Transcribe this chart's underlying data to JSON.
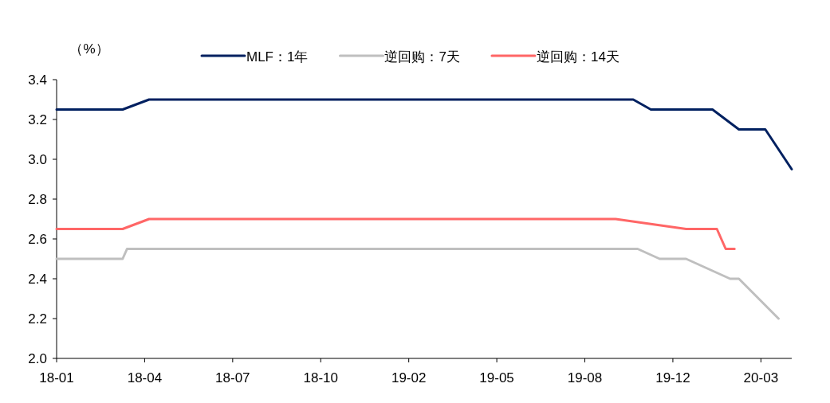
{
  "chart_data": {
    "type": "line",
    "ylabel": "（%）",
    "legend": "top",
    "grid": false,
    "line_style": "solid",
    "marker": "none",
    "categories": [
      "18-01",
      null,
      null,
      null,
      null,
      null,
      null,
      null,
      null,
      null,
      null,
      null,
      null,
      null,
      null,
      null,
      null,
      null,
      null,
      null,
      "18-04",
      null,
      null,
      null,
      null,
      null,
      null,
      null,
      null,
      null,
      null,
      null,
      null,
      null,
      null,
      null,
      null,
      null,
      null,
      null,
      "18-07",
      null,
      null,
      null,
      null,
      null,
      null,
      null,
      null,
      null,
      null,
      null,
      null,
      null,
      null,
      null,
      null,
      null,
      null,
      null,
      "18-10",
      null,
      null,
      null,
      null,
      null,
      null,
      null,
      null,
      null,
      null,
      null,
      null,
      null,
      null,
      null,
      null,
      null,
      null,
      null,
      "19-02",
      null,
      null,
      null,
      null,
      null,
      null,
      null,
      null,
      null,
      null,
      null,
      null,
      null,
      null,
      null,
      null,
      null,
      null,
      null,
      "19-05",
      null,
      null,
      null,
      null,
      null,
      null,
      null,
      null,
      null,
      null,
      null,
      null,
      null,
      null,
      null,
      null,
      null,
      null,
      null,
      "19-08",
      null,
      null,
      null,
      null,
      null,
      null,
      null,
      null,
      null,
      null,
      null,
      null,
      null,
      null,
      null,
      null,
      null,
      null,
      null,
      "19-12",
      null,
      null,
      null,
      null,
      null,
      null,
      null,
      null,
      null,
      null,
      null,
      null,
      null,
      null,
      null,
      null,
      null,
      null,
      null,
      "20-03",
      null,
      null,
      null,
      null,
      null,
      null,
      null
    ],
    "ylim": [
      2.0,
      3.4
    ],
    "yticks": [
      {
        "value": 2.0,
        "label": "2.0"
      },
      {
        "value": 2.2,
        "label": "2.2"
      },
      {
        "value": 2.4,
        "label": "2.4"
      },
      {
        "value": 2.6,
        "label": "2.6"
      },
      {
        "value": 2.8,
        "label": "2.8"
      },
      {
        "value": 3.0,
        "label": "3.0"
      },
      {
        "value": 3.2,
        "label": "3.2"
      },
      {
        "value": 3.4,
        "label": "3.4"
      }
    ],
    "series": [
      {
        "name": "MLF：1年",
        "color": "#002060",
        "values": [
          3.25,
          null,
          null,
          null,
          null,
          null,
          null,
          null,
          null,
          null,
          null,
          null,
          null,
          null,
          null,
          3.25,
          null,
          null,
          null,
          null,
          null,
          3.3,
          null,
          null,
          null,
          null,
          null,
          null,
          null,
          null,
          null,
          null,
          null,
          null,
          null,
          null,
          null,
          null,
          null,
          null,
          null,
          null,
          null,
          null,
          null,
          null,
          null,
          null,
          null,
          null,
          null,
          null,
          null,
          null,
          null,
          null,
          null,
          null,
          null,
          null,
          null,
          null,
          null,
          null,
          null,
          null,
          null,
          null,
          null,
          null,
          null,
          null,
          null,
          null,
          null,
          null,
          null,
          null,
          null,
          null,
          null,
          null,
          null,
          null,
          null,
          null,
          null,
          null,
          null,
          null,
          null,
          null,
          null,
          null,
          null,
          null,
          null,
          null,
          null,
          null,
          null,
          null,
          null,
          null,
          null,
          null,
          null,
          null,
          null,
          null,
          null,
          null,
          null,
          null,
          null,
          null,
          null,
          null,
          null,
          null,
          null,
          null,
          null,
          null,
          null,
          null,
          null,
          null,
          null,
          null,
          null,
          3.3,
          null,
          null,
          null,
          3.25,
          null,
          null,
          null,
          null,
          null,
          null,
          null,
          null,
          null,
          null,
          null,
          null,
          null,
          3.25,
          null,
          null,
          null,
          null,
          null,
          3.15,
          null,
          null,
          null,
          null,
          null,
          3.15,
          null,
          null,
          null,
          null,
          null,
          2.95
        ]
      },
      {
        "name": "逆回购：7天",
        "color": "#bfbfbf",
        "values": [
          2.5,
          null,
          null,
          null,
          null,
          null,
          null,
          null,
          null,
          null,
          null,
          null,
          null,
          null,
          null,
          2.5,
          2.55,
          null,
          null,
          null,
          null,
          null,
          null,
          null,
          null,
          null,
          null,
          null,
          null,
          null,
          null,
          null,
          null,
          null,
          null,
          null,
          null,
          null,
          null,
          null,
          null,
          null,
          null,
          null,
          null,
          null,
          null,
          null,
          null,
          null,
          null,
          null,
          null,
          null,
          null,
          null,
          null,
          null,
          null,
          null,
          null,
          null,
          null,
          null,
          null,
          null,
          null,
          null,
          null,
          null,
          null,
          null,
          null,
          null,
          null,
          null,
          null,
          null,
          null,
          null,
          null,
          null,
          null,
          null,
          null,
          null,
          null,
          null,
          null,
          null,
          null,
          null,
          null,
          null,
          null,
          null,
          null,
          null,
          null,
          null,
          null,
          null,
          null,
          null,
          null,
          null,
          null,
          null,
          null,
          null,
          null,
          null,
          null,
          null,
          null,
          null,
          null,
          null,
          null,
          null,
          null,
          null,
          null,
          null,
          null,
          null,
          null,
          null,
          null,
          null,
          null,
          null,
          2.55,
          null,
          null,
          null,
          null,
          2.5,
          null,
          null,
          null,
          null,
          null,
          2.5,
          null,
          null,
          null,
          null,
          null,
          null,
          null,
          null,
          null,
          2.4,
          null,
          2.4,
          null,
          null,
          null,
          null,
          null,
          null,
          null,
          null,
          2.2,
          null,
          null,
          null
        ]
      },
      {
        "name": "逆回购：14天",
        "color": "#ff6666",
        "values": [
          2.65,
          null,
          null,
          null,
          null,
          null,
          null,
          null,
          null,
          null,
          null,
          null,
          null,
          null,
          null,
          2.65,
          null,
          null,
          null,
          null,
          null,
          2.7,
          null,
          null,
          null,
          null,
          null,
          null,
          null,
          null,
          null,
          null,
          null,
          null,
          null,
          null,
          null,
          null,
          null,
          null,
          null,
          null,
          null,
          null,
          null,
          null,
          null,
          null,
          null,
          null,
          null,
          null,
          null,
          null,
          null,
          null,
          null,
          null,
          null,
          null,
          null,
          null,
          null,
          null,
          null,
          null,
          null,
          null,
          null,
          null,
          null,
          null,
          null,
          null,
          null,
          null,
          null,
          null,
          null,
          null,
          null,
          null,
          null,
          null,
          null,
          null,
          null,
          null,
          null,
          null,
          null,
          null,
          null,
          null,
          null,
          null,
          null,
          null,
          null,
          null,
          null,
          null,
          null,
          null,
          null,
          null,
          null,
          null,
          null,
          null,
          null,
          null,
          null,
          null,
          null,
          null,
          null,
          null,
          null,
          null,
          null,
          null,
          null,
          null,
          null,
          null,
          null,
          2.7,
          null,
          null,
          null,
          null,
          null,
          null,
          null,
          null,
          null,
          null,
          null,
          null,
          null,
          null,
          null,
          2.65,
          null,
          null,
          null,
          null,
          null,
          null,
          2.65,
          null,
          2.55,
          null,
          2.55,
          null,
          null,
          null,
          null,
          null,
          null,
          null,
          null,
          null,
          null,
          null,
          null,
          null
        ]
      }
    ]
  }
}
